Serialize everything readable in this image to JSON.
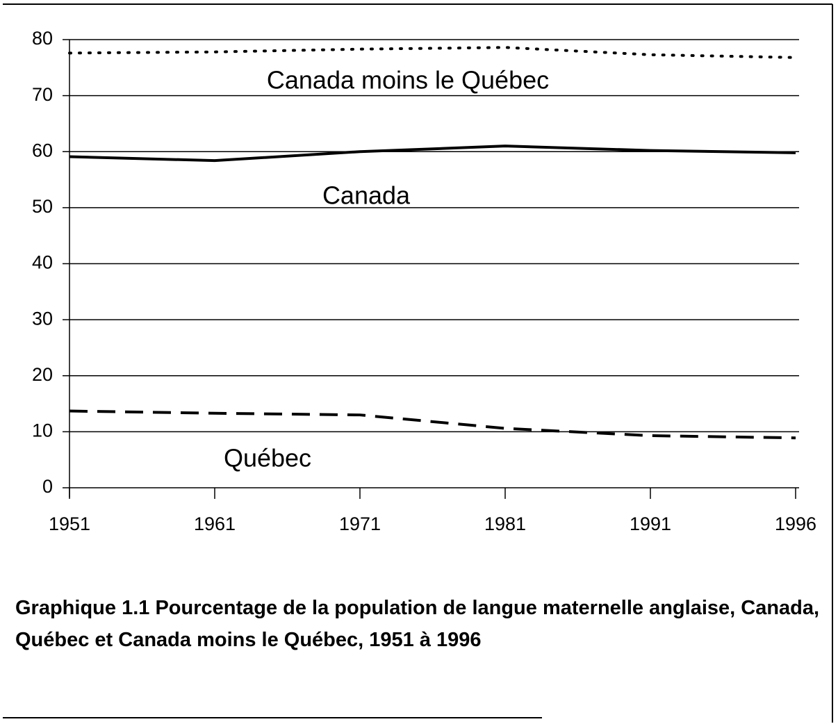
{
  "chart_data": {
    "type": "line",
    "title": "Graphique 1.1 Pourcentage de la population de langue maternelle anglaise, Canada, Québec et Canada moins le Québec, 1951 à 1996",
    "categories": [
      "1951",
      "1961",
      "1971",
      "1981",
      "1991",
      "1996"
    ],
    "series": [
      {
        "name": "Canada moins le Québec",
        "color": "#000000",
        "dash": "dotted",
        "values": [
          77.6,
          77.8,
          78.3,
          78.6,
          77.3,
          76.8
        ]
      },
      {
        "name": "Canada",
        "color": "#000000",
        "dash": "solid",
        "values": [
          59.1,
          58.4,
          60.0,
          61.0,
          60.2,
          59.8
        ]
      },
      {
        "name": "Québec",
        "color": "#000000",
        "dash": "dashed",
        "values": [
          13.7,
          13.3,
          13.0,
          10.6,
          9.3,
          8.9
        ]
      }
    ],
    "ylim": [
      0,
      80
    ],
    "yticks": [
      0,
      10,
      20,
      30,
      40,
      50,
      60,
      70,
      80
    ],
    "grid": true
  }
}
